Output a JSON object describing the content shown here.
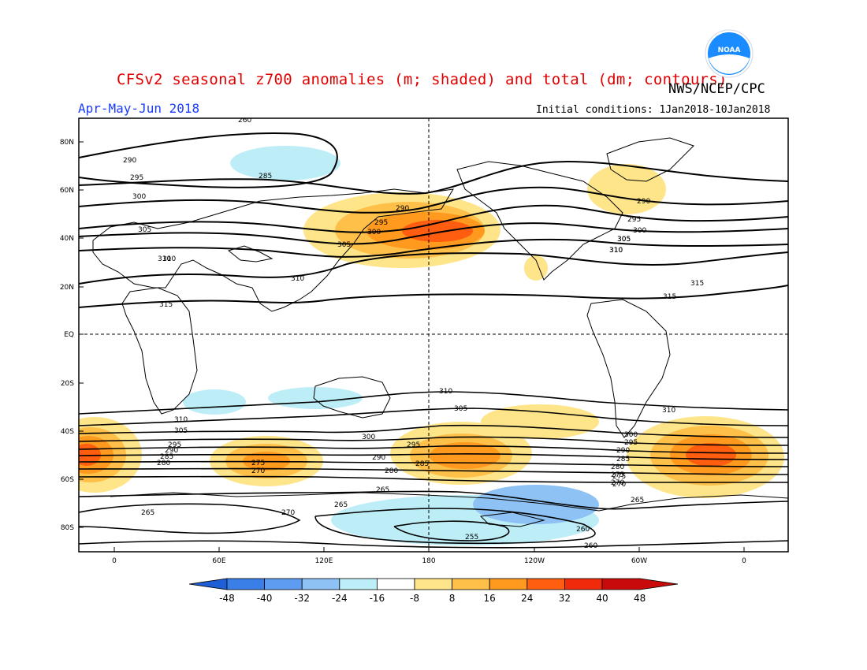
{
  "title": "CFSv2 seasonal z700 anomalies (m; shaded) and total (dm; contours)",
  "agency": "NWS/NCEP/CPC",
  "period": "Apr-May-Jun 2018",
  "initial_conditions": "Initial conditions: 1Jan2018-10Jan2018",
  "colors": {
    "title": "#e00000",
    "period": "#1a3cff",
    "logo_blue": "#1a8cff"
  },
  "logo_text": "NOAA",
  "lat_labels": [
    "80N",
    "60N",
    "40N",
    "20N",
    "EQ",
    "20S",
    "40S",
    "60S",
    "80S"
  ],
  "lon_labels": [
    "0",
    "60E",
    "120E",
    "180",
    "120W",
    "60W",
    "0"
  ],
  "colorbar": {
    "colors": [
      "#1e5fd6",
      "#3a7ee8",
      "#5d9cf0",
      "#8ec2f5",
      "#bdeef7",
      "#ffffff",
      "#ffe58a",
      "#ffc04a",
      "#ff9a1e",
      "#ff5e10",
      "#f02a0a",
      "#c80a0a"
    ],
    "labels": [
      "-48",
      "-40",
      "-32",
      "-24",
      "-16",
      "-8",
      "8",
      "16",
      "24",
      "32",
      "40",
      "48"
    ]
  },
  "contour_labels": [
    "260",
    "290",
    "285",
    "295",
    "300",
    "305",
    "310",
    "315",
    "290",
    "295",
    "300",
    "305",
    "305",
    "310",
    "310",
    "310",
    "315",
    "290",
    "295",
    "300",
    "305",
    "310",
    "315",
    "310",
    "305",
    "310",
    "300",
    "295",
    "290",
    "285",
    "280",
    "275",
    "270",
    "265",
    "275",
    "270",
    "265",
    "270",
    "255",
    "260",
    "260",
    "265",
    "300",
    "295",
    "290",
    "285",
    "280",
    "275",
    "270",
    "265",
    "305",
    "310",
    "280",
    "285",
    "290",
    "295"
  ]
}
